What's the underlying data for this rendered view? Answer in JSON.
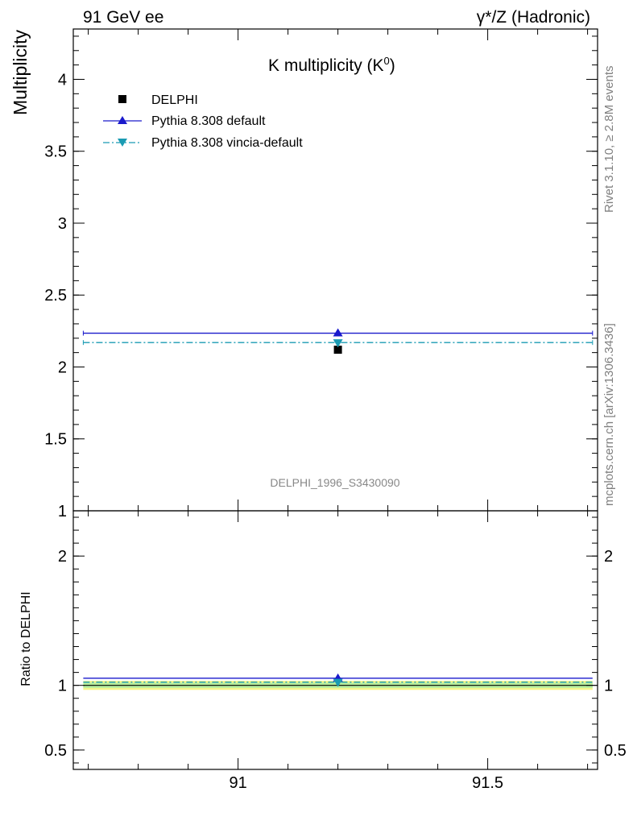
{
  "header": {
    "left_label": "91 GeV ee",
    "right_label": "γ*/Z (Hadronic)"
  },
  "main_panel": {
    "title": "K multiplicity (K",
    "title_sup": "0",
    "title_close": ")",
    "ylabel": "Multiplicity",
    "analysis_label": "DELPHI_1996_S3430090"
  },
  "ratio_panel": {
    "ylabel": "Ratio to DELPHI"
  },
  "side_labels": {
    "rivet": "Rivet 3.1.10, ≥ 2.8M events",
    "mcplots": "mcplots.cern.ch [arXiv:1306.3436]"
  },
  "legend": {
    "placement": "top-left",
    "entries": [
      {
        "label": "DELPHI",
        "marker": "square",
        "color": "#000000"
      },
      {
        "label": "Pythia 8.308 default",
        "marker": "triangle-up",
        "color": "#1a1acc"
      },
      {
        "label": "Pythia 8.308 vincia-default",
        "marker": "triangle-down",
        "color": "#1a9bb3"
      }
    ]
  },
  "chart_data": [
    {
      "type": "scatter",
      "panel": "main",
      "xlim": [
        90.67,
        91.72
      ],
      "ylim": [
        1.0,
        4.35
      ],
      "x_ticks": [
        "91",
        "91.5"
      ],
      "y_ticks": [
        "1",
        "1.5",
        "2",
        "2.5",
        "3",
        "3.5",
        "4"
      ],
      "x_bin": [
        90.69,
        91.71
      ],
      "series": [
        {
          "name": "DELPHI",
          "x": [
            91.2
          ],
          "y": [
            2.12
          ],
          "style": "marker",
          "color": "#000000"
        },
        {
          "name": "Pythia 8.308 default",
          "x": [
            91.2
          ],
          "y": [
            2.235
          ],
          "style": "solid",
          "color": "#1a1acc"
        },
        {
          "name": "Pythia 8.308 vincia-default",
          "x": [
            91.2
          ],
          "y": [
            2.17
          ],
          "style": "dashdot",
          "color": "#1a9bb3"
        }
      ]
    },
    {
      "type": "scatter",
      "panel": "ratio",
      "xlim": [
        90.67,
        91.72
      ],
      "ylim": [
        0.35,
        2.35
      ],
      "y_ticks": [
        "0.5",
        "1",
        "2"
      ],
      "band": {
        "inner": [
          0.98,
          1.02
        ],
        "outer": [
          0.965,
          1.035
        ],
        "inner_color": "#b7ee9f",
        "outer_color": "#f6f58a"
      },
      "series": [
        {
          "name": "Pythia 8.308 default",
          "x": [
            91.2
          ],
          "y": [
            1.055
          ],
          "style": "solid",
          "color": "#1a1acc"
        },
        {
          "name": "Pythia 8.308 vincia-default",
          "x": [
            91.2
          ],
          "y": [
            1.025
          ],
          "style": "dashdot",
          "color": "#1a9bb3"
        }
      ]
    }
  ]
}
